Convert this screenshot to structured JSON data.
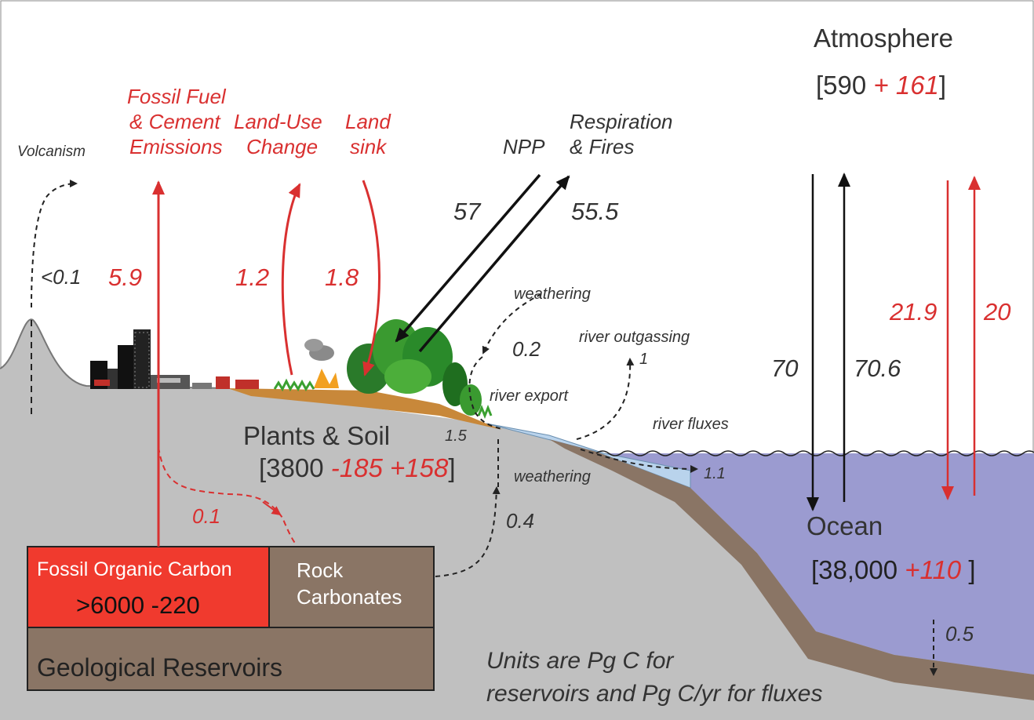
{
  "labels": {
    "atmosphere": "Atmosphere",
    "atmosphere_open": "[590 ",
    "atmosphere_anth": "+ 161",
    "atmosphere_close": "]",
    "fossil_fuel_l1": "Fossil Fuel",
    "fossil_fuel_l2": "& Cement",
    "fossil_fuel_l3": "Emissions",
    "land_use_l1": "Land-Use",
    "land_use_l2": "Change",
    "land_sink_l1": "Land",
    "land_sink_l2": "sink",
    "volcanism": "Volcanism",
    "npp": "NPP",
    "respiration_l1": "Respiration",
    "respiration_l2": "& Fires",
    "weathering_top": "weathering",
    "river_outgassing": "river outgassing",
    "river_export": "river export",
    "river_fluxes": "river fluxes",
    "weathering_bottom": "weathering",
    "plants_soil": "Plants & Soil",
    "plants_open": "[3800 ",
    "plants_anth": "-185 +158",
    "plants_close": "]",
    "ocean": "Ocean",
    "ocean_open": "[38,000 ",
    "ocean_anth": "+110",
    "ocean_close": " ]",
    "fossil_org_carbon": "Fossil Organic Carbon",
    "fossil_org_value": ">6000 -220",
    "rock_carb_l1": "Rock",
    "rock_carb_l2": "Carbonates",
    "geological": "Geological Reservoirs",
    "units_l1": "Units are Pg C for",
    "units_l2": "reservoirs and Pg C/yr for fluxes"
  },
  "fluxes": {
    "volcanism": "<0.1",
    "fossil_fuel": "5.9",
    "land_use": "1.2",
    "land_sink": "1.8",
    "npp": "57",
    "respiration": "55.5",
    "weathering_top": "0.2",
    "river_outgassing": "1",
    "river_export": "1.5",
    "river_to_ocean": "1.1",
    "weathering_bottom": "0.4",
    "fossil_to_surface": "0.1",
    "ocean_uptake_natural": "70",
    "ocean_release_natural": "70.6",
    "ocean_uptake_anth": "21.9",
    "ocean_release_anth": "20",
    "sediment_burial": "0.5"
  },
  "colors": {
    "anthropogenic": "#d93030",
    "natural": "#333333",
    "ocean": "#9b9bd0",
    "land_gray": "#c0c0c0",
    "sediment": "#8a7565",
    "fossil_box": "#f03a2e",
    "soil": "#c8883a"
  }
}
